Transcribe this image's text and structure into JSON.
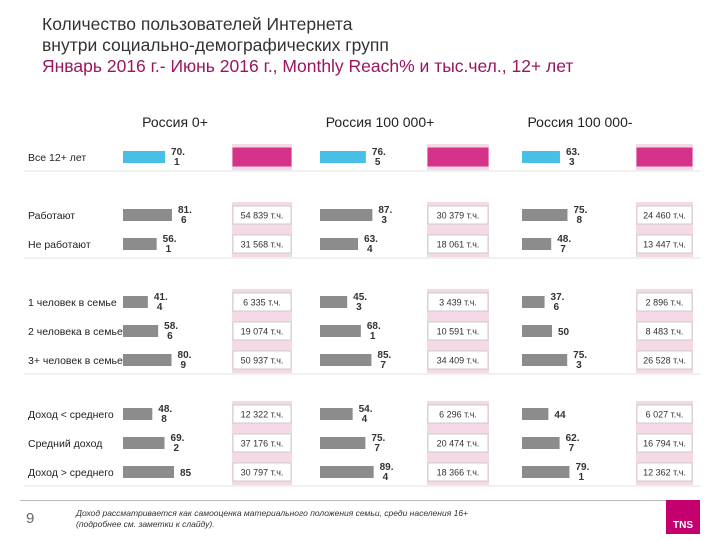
{
  "title": {
    "line1": "Количество пользователей Интернета",
    "line2": "внутри социально-демографических групп",
    "line3": "Январь 2016 г.- Июнь 2016 г., Monthly Reach% и тыс.чел., 12+ лет"
  },
  "footnote": "Доход рассматривается как самооценка материального положения семьи, среди населения 16+ (подробнее см. заметки к слайду).",
  "page_number": "9",
  "logo_text": "TNS",
  "colors": {
    "bar_highlight": "#48c0e6",
    "bar_gray": "#8c8c8c",
    "box_highlight": "#d5338a",
    "box_pink_bg": "#f5d9e6",
    "box_border": "#ccc"
  },
  "chart_data": {
    "type": "bar",
    "groups": [
      "Россия 0+",
      "Россия 100 000+",
      "Россия 100 000-"
    ],
    "categories": [
      "Все 12+ лет",
      "Работают",
      "Не работают",
      "1 человек в семье",
      "2 человека в семье",
      "3+ человек в семье",
      "Доход < среднего",
      "Средний доход",
      "Доход > среднего"
    ],
    "category_blocks": [
      [
        0
      ],
      [
        1,
        2
      ],
      [
        3,
        4,
        5
      ],
      [
        6,
        7,
        8
      ]
    ],
    "series": [
      {
        "reach_pct": [
          70.1,
          81.6,
          56.1,
          41.4,
          58.6,
          80.9,
          48.8,
          69.2,
          85
        ],
        "reach_labels": [
          "70.\n1",
          "81.\n6",
          "56.\n1",
          "41.\n4",
          "58.\n6",
          "80.\n9",
          "48.\n8",
          "69.\n2",
          "85"
        ],
        "users": [
          "",
          "54 839 т.ч.",
          "31 568 т.ч.",
          "6 335 т.ч.",
          "19 074 т.ч.",
          "50 937 т.ч.",
          "12 322 т.ч.",
          "37 176 т.ч.",
          "30 797 т.ч."
        ]
      },
      {
        "reach_pct": [
          76.5,
          87.3,
          63.4,
          45.3,
          68.1,
          85.7,
          54.4,
          75.7,
          89.4
        ],
        "reach_labels": [
          "76.\n5",
          "87.\n3",
          "63.\n4",
          "45.\n3",
          "68.\n1",
          "85.\n7",
          "54.\n4",
          "75.\n7",
          "89.\n4"
        ],
        "users": [
          "",
          "30 379 т.ч.",
          "18 061 т.ч.",
          "3 439 т.ч.",
          "10 591 т.ч.",
          "34 409 т.ч.",
          "6 296 т.ч.",
          "20 474 т.ч.",
          "18 366 т.ч."
        ]
      },
      {
        "reach_pct": [
          63.3,
          75.8,
          48.7,
          37.6,
          50,
          75.3,
          44,
          62.7,
          79.1
        ],
        "reach_labels": [
          "63.\n3",
          "75.\n8",
          "48.\n7",
          "37.\n6",
          "50",
          "75.\n3",
          "44",
          "62.\n7",
          "79.\n1"
        ],
        "users": [
          "",
          "24 460 т.ч.",
          "13 447 т.ч.",
          "2 896 т.ч.",
          "8 483 т.ч.",
          "26 528 т.ч.",
          "6 027 т.ч.",
          "16 794 т.ч.",
          "12 362 т.ч."
        ]
      }
    ],
    "xlim": [
      0,
      100
    ]
  }
}
